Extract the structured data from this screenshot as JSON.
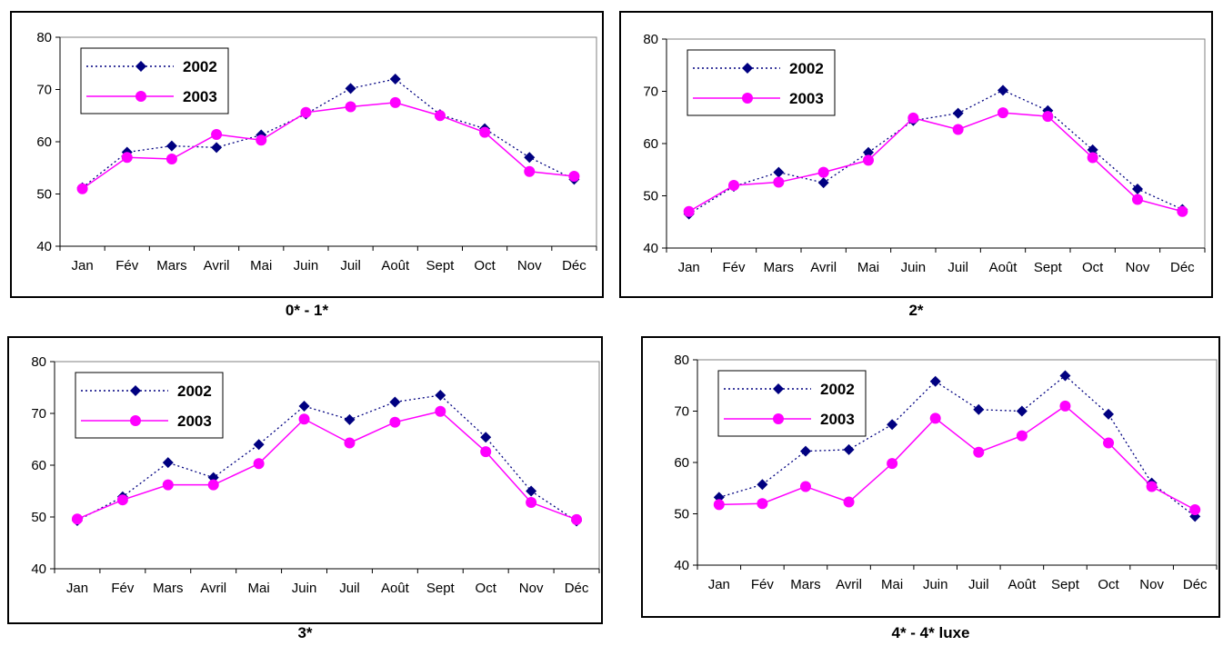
{
  "colors": {
    "series_2002": "#000080",
    "series_2003": "#ff00ff",
    "plot_border": "#808080"
  },
  "chart_data": [
    {
      "type": "line",
      "title": "0* - 1*",
      "categories": [
        "Jan",
        "Fév",
        "Mars",
        "Avril",
        "Mai",
        "Juin",
        "Juil",
        "Août",
        "Sept",
        "Oct",
        "Nov",
        "Déc"
      ],
      "ylim": [
        40,
        80
      ],
      "yticks": [
        "40",
        "50",
        "60",
        "70",
        "80"
      ],
      "legend_position": "top-left",
      "series": [
        {
          "name": "2002",
          "marker": "diamond",
          "line": "dotted",
          "values": [
            51.2,
            58.0,
            59.2,
            58.9,
            61.3,
            65.3,
            70.2,
            72.0,
            65.2,
            62.5,
            57.0,
            52.8
          ]
        },
        {
          "name": "2003",
          "marker": "circle",
          "line": "solid",
          "values": [
            51.0,
            57.0,
            56.7,
            61.4,
            60.3,
            65.6,
            66.7,
            67.5,
            65.0,
            61.8,
            54.3,
            53.4
          ]
        }
      ]
    },
    {
      "type": "line",
      "title": "2*",
      "categories": [
        "Jan",
        "Fév",
        "Mars",
        "Avril",
        "Mai",
        "Juin",
        "Juil",
        "Août",
        "Sept",
        "Oct",
        "Nov",
        "Déc"
      ],
      "ylim": [
        40,
        80
      ],
      "yticks": [
        "40",
        "50",
        "60",
        "70",
        "80"
      ],
      "legend_position": "top-left",
      "series": [
        {
          "name": "2002",
          "marker": "diamond",
          "line": "dotted",
          "values": [
            46.5,
            51.8,
            54.5,
            52.5,
            58.3,
            64.4,
            65.8,
            70.2,
            66.3,
            58.8,
            51.3,
            47.4
          ]
        },
        {
          "name": "2003",
          "marker": "circle",
          "line": "solid",
          "values": [
            47.0,
            52.0,
            52.6,
            54.5,
            56.8,
            64.9,
            62.7,
            65.9,
            65.2,
            57.3,
            49.3,
            47.0
          ]
        }
      ]
    },
    {
      "type": "line",
      "title": "3*",
      "categories": [
        "Jan",
        "Fév",
        "Mars",
        "Avril",
        "Mai",
        "Juin",
        "Juil",
        "Août",
        "Sept",
        "Oct",
        "Nov",
        "Déc"
      ],
      "ylim": [
        40,
        80
      ],
      "yticks": [
        "40",
        "50",
        "60",
        "70",
        "80"
      ],
      "legend_position": "top-left",
      "series": [
        {
          "name": "2002",
          "marker": "diamond",
          "line": "dotted",
          "values": [
            49.3,
            53.9,
            60.5,
            57.6,
            64.0,
            71.4,
            68.8,
            72.2,
            73.5,
            65.4,
            55.0,
            49.2
          ]
        },
        {
          "name": "2003",
          "marker": "circle",
          "line": "solid",
          "values": [
            49.6,
            53.3,
            56.2,
            56.2,
            60.3,
            68.9,
            64.3,
            68.3,
            70.4,
            62.6,
            52.8,
            49.5
          ]
        }
      ]
    },
    {
      "type": "line",
      "title": "4* - 4* luxe",
      "categories": [
        "Jan",
        "Fév",
        "Mars",
        "Avril",
        "Mai",
        "Juin",
        "Juil",
        "Août",
        "Sept",
        "Oct",
        "Nov",
        "Déc"
      ],
      "ylim": [
        40,
        80
      ],
      "yticks": [
        "40",
        "50",
        "60",
        "70",
        "80"
      ],
      "legend_position": "top-left",
      "series": [
        {
          "name": "2002",
          "marker": "diamond",
          "line": "dotted",
          "values": [
            53.2,
            55.7,
            62.2,
            62.5,
            67.4,
            75.8,
            70.3,
            70.0,
            76.9,
            69.4,
            56.0,
            49.5
          ]
        },
        {
          "name": "2003",
          "marker": "circle",
          "line": "solid",
          "values": [
            51.8,
            52.0,
            55.3,
            52.3,
            59.8,
            68.6,
            62.0,
            65.2,
            71.0,
            63.8,
            55.3,
            50.8
          ]
        }
      ]
    }
  ]
}
